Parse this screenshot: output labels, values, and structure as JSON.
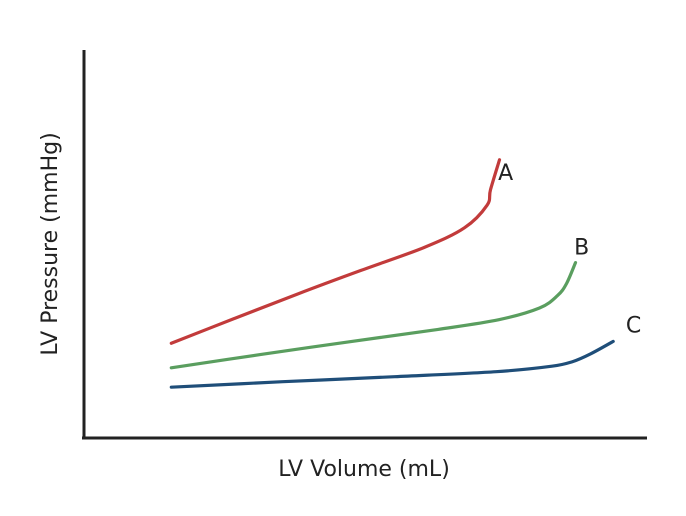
{
  "chart_data": {
    "type": "line",
    "title": "",
    "xlabel": "LV Volume (mL)",
    "ylabel": "LV Pressure (mmHg)",
    "grid": false,
    "legend": "none",
    "xlim": [
      0,
      100
    ],
    "ylim": [
      0,
      100
    ],
    "series": [
      {
        "name": "A",
        "color": "#c23b3b",
        "x": [
          15.5,
          26.7,
          37.9,
          49.2,
          60.4,
          67.6,
          71.6,
          72.2,
          73.8,
          74.9
        ],
        "y": [
          24.4,
          30.8,
          37.1,
          43.2,
          49.1,
          54.2,
          60.0,
          64.0,
          71.7,
          68.0
        ]
      },
      {
        "name": "B",
        "color": "#5a9e5f",
        "x": [
          15.5,
          31.3,
          47.1,
          62.9,
          73.7,
          80.9,
          84.1,
          85.7,
          87.3,
          88.4
        ],
        "y": [
          18.1,
          21.5,
          24.8,
          28.0,
          30.5,
          33.5,
          36.7,
          39.8,
          45.2,
          48.8
        ]
      },
      {
        "name": "C",
        "color": "#1f4e79",
        "x": [
          15.5,
          35.3,
          55.2,
          73.2,
          83.1,
          86.8,
          90.0,
          94.0,
          97.6
        ],
        "y": [
          13.1,
          14.5,
          15.8,
          17.1,
          18.5,
          19.7,
          21.7,
          24.9,
          28.8
        ]
      }
    ]
  }
}
